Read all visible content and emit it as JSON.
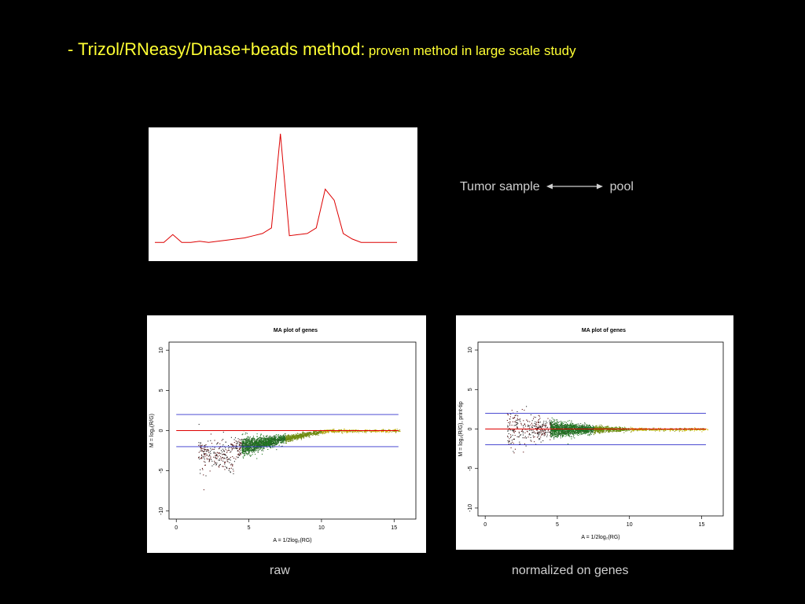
{
  "slide": {
    "title_main": "- Trizol/RNeasy/Dnase+beads method:",
    "title_sub": "proven method in large scale study"
  },
  "comparison": {
    "left": "Tumor sample",
    "right": "pool",
    "arrow_icon": "double-arrow-icon"
  },
  "captions": {
    "raw": "raw",
    "normalized": "normalized on genes"
  },
  "colors": {
    "background": "#000000",
    "title": "#ffff33",
    "trace": "#dd0000",
    "ref_line_red": "#dd0000",
    "ref_line_blue": "#3333cc"
  },
  "chart_data": [
    {
      "type": "line",
      "title": "",
      "xlabel": "",
      "ylabel": "",
      "series": [
        {
          "values": [
            0.02,
            0.02,
            0.09,
            0.02,
            0.02,
            0.03,
            0.02,
            0.03,
            0.04,
            0.05,
            0.06,
            0.08,
            0.1,
            0.15,
            1.0,
            0.08,
            0.09,
            0.1,
            0.15,
            0.5,
            0.4,
            0.1,
            0.05,
            0.02,
            0.02,
            0.02,
            0.02,
            0.02
          ]
        }
      ],
      "grid": false
    },
    {
      "type": "scatter",
      "title": "MA plot of genes",
      "xlabel": "A = 1/2log₂(RG)",
      "ylabel": "M = log₂(R/G)",
      "xticks": [
        "0",
        "5",
        "10",
        "15"
      ],
      "yticks": [
        "-10",
        "-5",
        "0",
        "5",
        "10"
      ],
      "xlim": [
        -0.5,
        16.5
      ],
      "ylim": [
        -11,
        11
      ],
      "hlines": [
        {
          "y": 0,
          "color": "red"
        },
        {
          "y": 2,
          "color": "blue"
        },
        {
          "y": -2,
          "color": "blue"
        }
      ],
      "cloud": {
        "x_center": 5.5,
        "y_center": -2,
        "trend_end_y": 0
      }
    },
    {
      "type": "scatter",
      "title": "MA plot of genes",
      "xlabel": "A = 1/2log₂(RG)",
      "ylabel": "M = log₂(R/G), print-tip",
      "xticks": [
        "0",
        "5",
        "10",
        "15"
      ],
      "yticks": [
        "-10",
        "-5",
        "0",
        "5",
        "10"
      ],
      "xlim": [
        -0.5,
        16.5
      ],
      "ylim": [
        -11,
        11
      ],
      "hlines": [
        {
          "y": 0,
          "color": "red"
        },
        {
          "y": 2,
          "color": "blue"
        },
        {
          "y": -2,
          "color": "blue"
        }
      ],
      "cloud": {
        "x_center": 5.5,
        "y_center": 0,
        "trend_end_y": 0
      }
    }
  ]
}
